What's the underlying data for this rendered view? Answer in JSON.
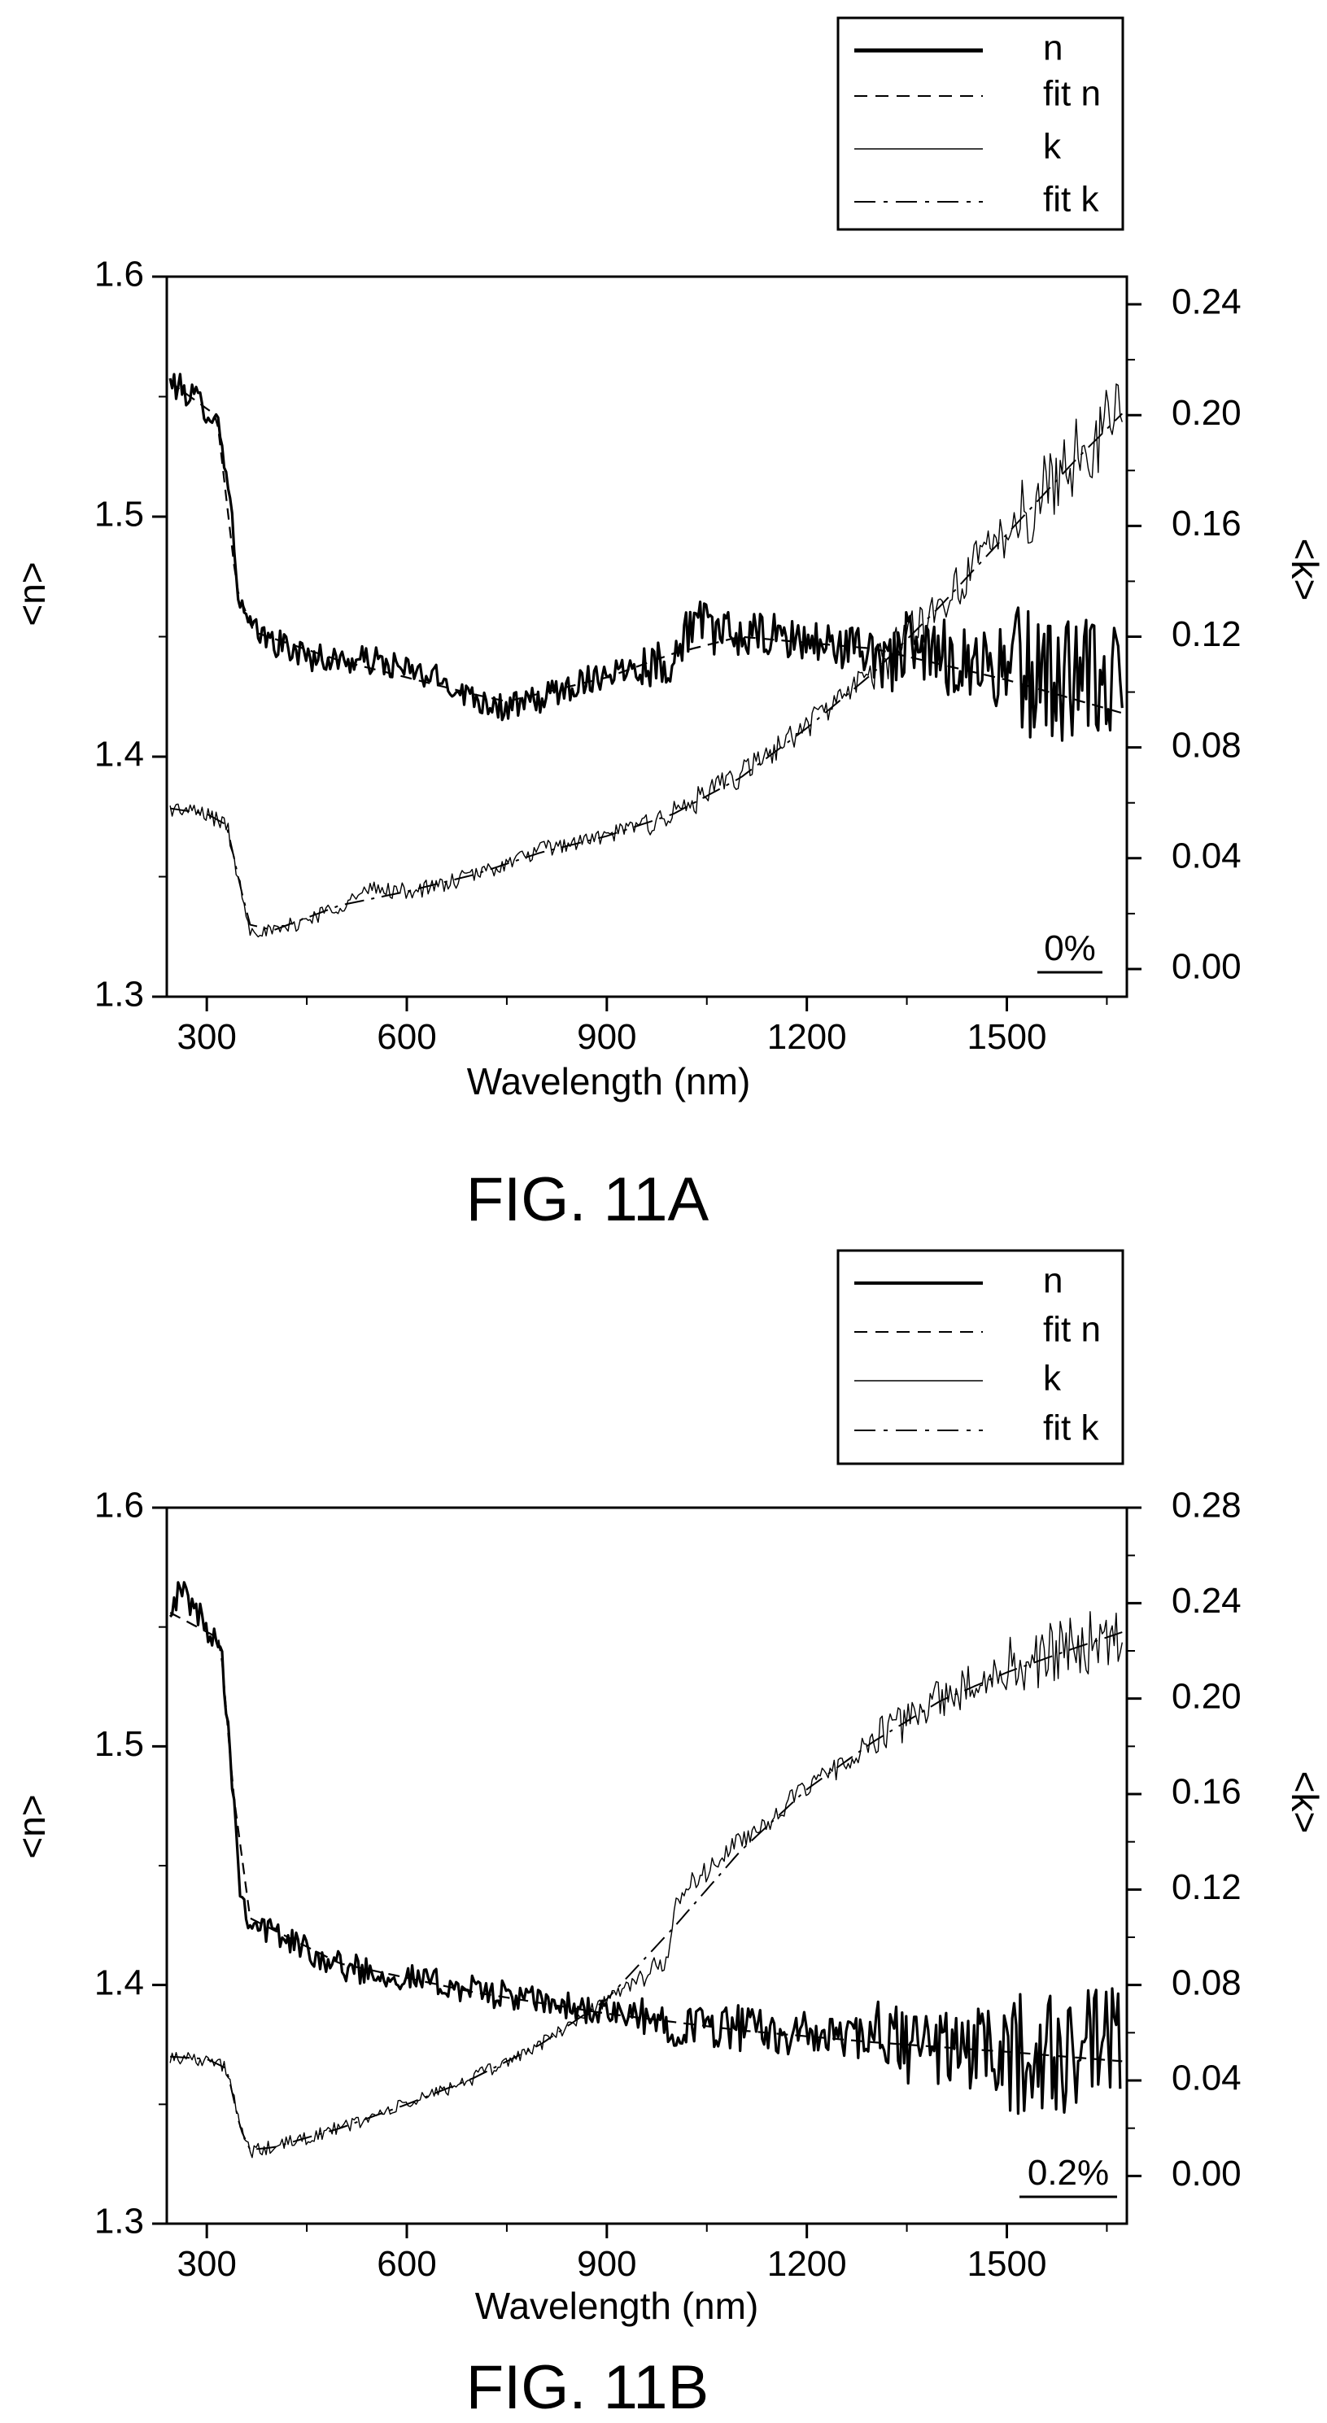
{
  "chart_data": [
    {
      "type": "line",
      "caption": "FIG. 11A",
      "annotation": "0%",
      "xlabel": "Wavelength (nm)",
      "ylabel_left": "<n>",
      "ylabel_right": "<k>",
      "xlim": [
        240,
        1680
      ],
      "ylim_left": [
        1.3,
        1.6
      ],
      "ylim_right": [
        -0.01,
        0.25
      ],
      "xticks": [
        300,
        600,
        900,
        1200,
        1500
      ],
      "yticks_left": [
        1.3,
        1.4,
        1.5,
        1.6
      ],
      "yticks_right": [
        0.0,
        0.04,
        0.08,
        0.12,
        0.16,
        0.2,
        0.24
      ],
      "yticks_right_labels": [
        "0.00",
        "0.04",
        "0.08",
        "0.12",
        "0.16",
        "0.20",
        "0.24"
      ],
      "legend": {
        "position": "top-right",
        "entries": [
          "n",
          "fit n",
          "k",
          "fit k"
        ]
      },
      "series": [
        {
          "name": "n",
          "axis": "left",
          "style": "solid-thick",
          "x": [
            245,
            280,
            315,
            330,
            350,
            370,
            400,
            450,
            500,
            550,
            600,
            650,
            700,
            750,
            800,
            850,
            900,
            950,
            1000,
            1030,
            1060,
            1100,
            1150,
            1200,
            1250,
            1300,
            1350,
            1400,
            1450,
            1500,
            1550,
            1600,
            1650,
            1675
          ],
          "y": [
            1.556,
            1.55,
            1.541,
            1.52,
            1.462,
            1.452,
            1.448,
            1.442,
            1.44,
            1.44,
            1.436,
            1.432,
            1.425,
            1.42,
            1.424,
            1.43,
            1.435,
            1.438,
            1.44,
            1.458,
            1.452,
            1.45,
            1.45,
            1.448,
            1.446,
            1.444,
            1.443,
            1.442,
            1.44,
            1.436,
            1.434,
            1.432,
            1.43,
            1.428
          ],
          "noise": 0.006
        },
        {
          "name": "fit n",
          "axis": "left",
          "style": "dashed",
          "x": [
            245,
            315,
            345,
            370,
            500,
            700,
            750,
            900,
            1000,
            1100,
            1300,
            1500,
            1675
          ],
          "y": [
            1.556,
            1.542,
            1.47,
            1.452,
            1.44,
            1.426,
            1.423,
            1.433,
            1.443,
            1.45,
            1.445,
            1.432,
            1.418
          ],
          "noise": 0
        },
        {
          "name": "k",
          "axis": "right",
          "style": "solid-thin",
          "x": [
            245,
            300,
            330,
            350,
            365,
            400,
            450,
            500,
            550,
            600,
            650,
            700,
            750,
            800,
            900,
            1000,
            1100,
            1200,
            1300,
            1400,
            1500,
            1600,
            1675
          ],
          "y": [
            0.058,
            0.056,
            0.052,
            0.03,
            0.015,
            0.013,
            0.018,
            0.023,
            0.029,
            0.028,
            0.03,
            0.034,
            0.038,
            0.043,
            0.048,
            0.056,
            0.07,
            0.088,
            0.108,
            0.132,
            0.158,
            0.184,
            0.202
          ],
          "noise": 0.003
        },
        {
          "name": "fit k",
          "axis": "right",
          "style": "dashdot",
          "x": [
            245,
            300,
            330,
            350,
            365,
            400,
            500,
            600,
            700,
            800,
            900,
            1000,
            1100,
            1200,
            1300,
            1400,
            1500,
            1600,
            1675
          ],
          "y": [
            0.058,
            0.056,
            0.052,
            0.03,
            0.016,
            0.014,
            0.023,
            0.028,
            0.034,
            0.042,
            0.048,
            0.056,
            0.069,
            0.087,
            0.107,
            0.131,
            0.157,
            0.183,
            0.201
          ],
          "noise": 0
        }
      ]
    },
    {
      "type": "line",
      "caption": "FIG. 11B",
      "annotation": "0.2%",
      "xlabel": "Wavelength (nm)",
      "ylabel_left": "<n>",
      "ylabel_right": "<k>",
      "xlim": [
        240,
        1680
      ],
      "ylim_left": [
        1.3,
        1.6
      ],
      "ylim_right": [
        -0.02,
        0.28
      ],
      "xticks": [
        300,
        600,
        900,
        1200,
        1500
      ],
      "yticks_left": [
        1.3,
        1.4,
        1.5,
        1.6
      ],
      "yticks_right": [
        0.0,
        0.04,
        0.08,
        0.12,
        0.16,
        0.2,
        0.24,
        0.28
      ],
      "yticks_right_labels": [
        "0.00",
        "0.04",
        "0.08",
        "0.12",
        "0.16",
        "0.20",
        "0.24",
        "0.28"
      ],
      "legend": {
        "position": "top-right",
        "entries": [
          "n",
          "fit n",
          "k",
          "fit k"
        ]
      },
      "series": [
        {
          "name": "n",
          "axis": "left",
          "style": "solid-thick",
          "x": [
            245,
            265,
            300,
            320,
            335,
            350,
            365,
            400,
            450,
            500,
            600,
            700,
            800,
            900,
            1000,
            1100,
            1200,
            1300,
            1400,
            1500,
            1600,
            1650,
            1670
          ],
          "y": [
            1.56,
            1.565,
            1.55,
            1.545,
            1.5,
            1.44,
            1.427,
            1.422,
            1.415,
            1.408,
            1.403,
            1.398,
            1.393,
            1.388,
            1.384,
            1.382,
            1.379,
            1.377,
            1.374,
            1.372,
            1.37,
            1.372,
            1.37
          ],
          "noise": 0.006
        },
        {
          "name": "fit n",
          "axis": "left",
          "style": "dashed",
          "x": [
            245,
            320,
            340,
            365,
            500,
            700,
            900,
            1100,
            1300,
            1500,
            1675
          ],
          "y": [
            1.556,
            1.545,
            1.48,
            1.428,
            1.409,
            1.397,
            1.388,
            1.381,
            1.376,
            1.372,
            1.368
          ],
          "noise": 0
        },
        {
          "name": "k",
          "axis": "right",
          "style": "solid-thin",
          "x": [
            245,
            300,
            330,
            350,
            365,
            400,
            500,
            600,
            700,
            800,
            900,
            990,
            1000,
            1010,
            1100,
            1200,
            1300,
            1400,
            1500,
            1600,
            1675
          ],
          "y": [
            0.05,
            0.049,
            0.045,
            0.02,
            0.01,
            0.012,
            0.02,
            0.03,
            0.041,
            0.055,
            0.074,
            0.09,
            0.11,
            0.118,
            0.14,
            0.162,
            0.182,
            0.2,
            0.212,
            0.222,
            0.229
          ],
          "noise": 0.003
        },
        {
          "name": "fit k",
          "axis": "right",
          "style": "dashdot",
          "x": [
            245,
            300,
            330,
            350,
            365,
            400,
            500,
            600,
            700,
            800,
            900,
            1000,
            1100,
            1200,
            1300,
            1400,
            1500,
            1600,
            1675
          ],
          "y": [
            0.05,
            0.049,
            0.045,
            0.02,
            0.011,
            0.012,
            0.02,
            0.03,
            0.041,
            0.055,
            0.074,
            0.104,
            0.136,
            0.162,
            0.182,
            0.199,
            0.211,
            0.221,
            0.228
          ],
          "noise": 0
        }
      ]
    }
  ]
}
